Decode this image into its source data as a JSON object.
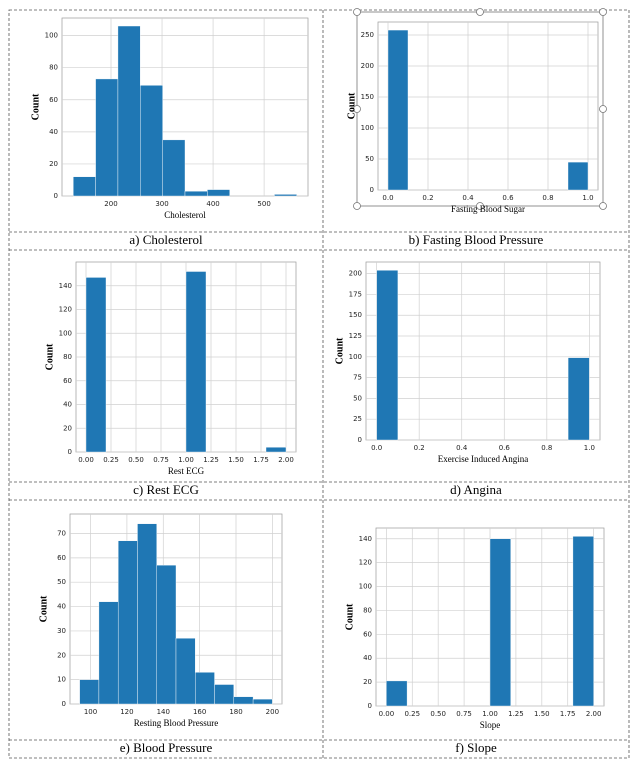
{
  "chart_data": [
    {
      "type": "histogram",
      "caption": "a) Cholesterol",
      "xlabel": "Cholesterol",
      "ylabel": "Count",
      "color": "#1f77b4",
      "grid": true,
      "bins": [
        126,
        169.8,
        213.6,
        257.4,
        301.2,
        345,
        388.8,
        432.6,
        476.4,
        520.2,
        564
      ],
      "values": [
        12,
        73,
        106,
        69,
        35,
        3,
        4,
        0,
        0,
        1
      ],
      "xlim": [
        104,
        586
      ],
      "xticks": [
        200,
        300,
        400,
        500
      ],
      "ylim": [
        0,
        111
      ],
      "yticks": [
        0,
        20,
        40,
        60,
        80,
        100
      ]
    },
    {
      "type": "histogram",
      "caption": "b) Fasting Blood Pressure",
      "xlabel": "Fasting Blood Sugar",
      "ylabel": "Count",
      "color": "#1f77b4",
      "grid": true,
      "bins": [
        0,
        0.1,
        0.2,
        0.3,
        0.4,
        0.5,
        0.6,
        0.7,
        0.8,
        0.9,
        1.0
      ],
      "values": [
        258,
        0,
        0,
        0,
        0,
        0,
        0,
        0,
        0,
        45
      ],
      "xlim": [
        -0.05,
        1.05
      ],
      "xticks": [
        {
          "value": 0,
          "label": "0.0"
        },
        0.2,
        0.4,
        0.6,
        0.8,
        {
          "value": 1,
          "label": "1.0"
        }
      ],
      "ylim": [
        0,
        271
      ],
      "yticks": [
        0,
        50,
        100,
        150,
        200,
        250
      ]
    },
    {
      "type": "histogram",
      "caption": "c) Rest ECG",
      "xlabel": "Rest ECG",
      "ylabel": "Count",
      "color": "#1f77b4",
      "grid": true,
      "bins": [
        0,
        0.2,
        0.4,
        0.6,
        0.8,
        1.0,
        1.2,
        1.4,
        1.6,
        1.8,
        2.0
      ],
      "values": [
        147,
        0,
        0,
        0,
        0,
        152,
        0,
        0,
        0,
        4
      ],
      "xlim": [
        -0.1,
        2.1
      ],
      "xticks": [
        {
          "value": 0,
          "label": "0.00"
        },
        0.25,
        {
          "value": 0.5,
          "label": "0.50"
        },
        0.75,
        {
          "value": 1,
          "label": "1.00"
        },
        1.25,
        {
          "value": 1.5,
          "label": "1.50"
        },
        1.75,
        {
          "value": 2,
          "label": "2.00"
        }
      ],
      "ylim": [
        0,
        160
      ],
      "yticks": [
        0,
        20,
        40,
        60,
        80,
        100,
        120,
        140
      ]
    },
    {
      "type": "histogram",
      "caption": "d) Angina",
      "xlabel": "Exercise Induced Angina",
      "ylabel": "Count",
      "color": "#1f77b4",
      "grid": true,
      "bins": [
        0,
        0.1,
        0.2,
        0.3,
        0.4,
        0.5,
        0.6,
        0.7,
        0.8,
        0.9,
        1.0
      ],
      "values": [
        204,
        0,
        0,
        0,
        0,
        0,
        0,
        0,
        0,
        99
      ],
      "xlim": [
        -0.05,
        1.05
      ],
      "xticks": [
        {
          "value": 0,
          "label": "0.0"
        },
        0.2,
        0.4,
        0.6,
        0.8,
        {
          "value": 1,
          "label": "1.0"
        }
      ],
      "ylim": [
        0,
        214
      ],
      "yticks": [
        0,
        25,
        50,
        75,
        100,
        125,
        150,
        175,
        200
      ]
    },
    {
      "type": "histogram",
      "caption": "e) Blood Pressure",
      "xlabel": "Resting Blood Pressure",
      "ylabel": "Count",
      "color": "#1f77b4",
      "grid": true,
      "bins": [
        94,
        104.6,
        115.2,
        125.8,
        136.4,
        147,
        157.6,
        168.2,
        178.8,
        189.4,
        200
      ],
      "values": [
        10,
        42,
        67,
        74,
        57,
        27,
        13,
        8,
        3,
        2
      ],
      "xlim": [
        88.7,
        205.3
      ],
      "xticks": [
        100,
        120,
        140,
        160,
        180,
        200
      ],
      "ylim": [
        0,
        78
      ],
      "yticks": [
        0,
        10,
        20,
        30,
        40,
        50,
        60,
        70
      ]
    },
    {
      "type": "histogram",
      "caption": "f) Slope",
      "xlabel": "Slope",
      "ylabel": "Count",
      "color": "#1f77b4",
      "grid": true,
      "bins": [
        0,
        0.2,
        0.4,
        0.6,
        0.8,
        1.0,
        1.2,
        1.4,
        1.6,
        1.8,
        2.0
      ],
      "values": [
        21,
        0,
        0,
        0,
        0,
        140,
        0,
        0,
        0,
        142
      ],
      "xlim": [
        -0.1,
        2.1
      ],
      "xticks": [
        {
          "value": 0,
          "label": "0.00"
        },
        0.25,
        {
          "value": 0.5,
          "label": "0.50"
        },
        0.75,
        {
          "value": 1,
          "label": "1.00"
        },
        1.25,
        {
          "value": 1.5,
          "label": "1.50"
        },
        1.75,
        {
          "value": 2,
          "label": "2.00"
        }
      ],
      "ylim": [
        0,
        149
      ],
      "yticks": [
        0,
        20,
        40,
        60,
        80,
        100,
        120,
        140
      ]
    }
  ]
}
